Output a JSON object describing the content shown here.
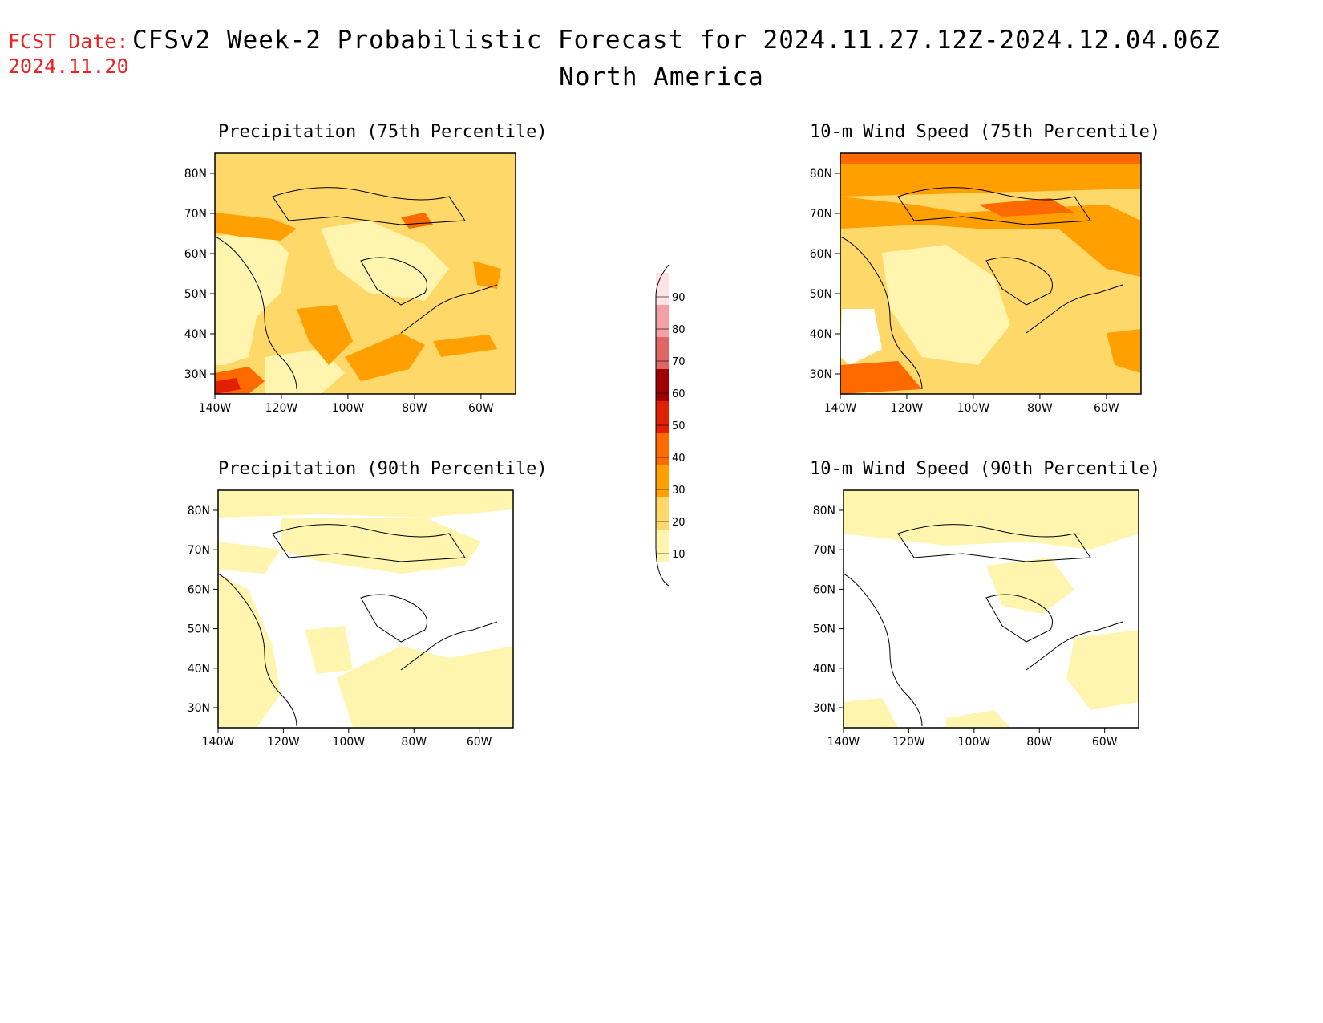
{
  "header": {
    "fcst_label": "FCST Date:",
    "fcst_date": "2024.11.20",
    "title": "CFSv2 Week-2 Probabilistic Forecast for 2024.11.27.12Z-2024.12.04.06Z",
    "subtitle": "North America"
  },
  "panels": [
    {
      "title": "Precipitation (75th Percentile)"
    },
    {
      "title": "10-m Wind Speed (75th Percentile)"
    },
    {
      "title": "Precipitation (90th Percentile)"
    },
    {
      "title": "10-m Wind Speed (90th Percentile)"
    }
  ],
  "axes": {
    "lat_labels": [
      "80N",
      "70N",
      "60N",
      "50N",
      "40N",
      "30N"
    ],
    "lon_labels": [
      "140W",
      "120W",
      "100W",
      "80W",
      "60W"
    ]
  },
  "colorbar": {
    "levels": [
      "90",
      "80",
      "70",
      "60",
      "50",
      "40",
      "30",
      "20",
      "10"
    ],
    "colors": [
      "#fde3e6",
      "#f4a0a6",
      "#e06666",
      "#a00000",
      "#e22000",
      "#ff6a00",
      "#ff9f00",
      "#ffd86a",
      "#fff5ae"
    ]
  }
}
